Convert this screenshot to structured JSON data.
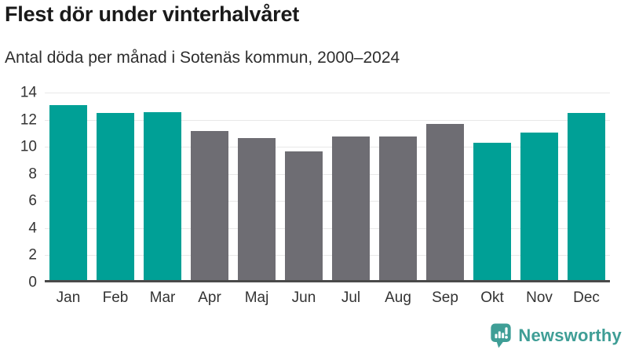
{
  "header": {
    "title": "Flest dör under vinterhalvåret",
    "subtitle": "Antal döda per månad i Sotenäs kommun, 2000–2024"
  },
  "chart_data": {
    "type": "bar",
    "title": "Flest dör under vinterhalvåret",
    "subtitle": "Antal döda per månad i Sotenäs kommun, 2000–2024",
    "categories": [
      "Jan",
      "Feb",
      "Mar",
      "Apr",
      "Maj",
      "Jun",
      "Jul",
      "Aug",
      "Sep",
      "Okt",
      "Nov",
      "Dec"
    ],
    "values": [
      12.9,
      12.3,
      12.4,
      11.0,
      10.5,
      9.5,
      10.6,
      10.6,
      11.5,
      10.1,
      10.9,
      12.3
    ],
    "highlighted": [
      true,
      true,
      true,
      false,
      false,
      false,
      false,
      false,
      false,
      true,
      true,
      true
    ],
    "xlabel": "",
    "ylabel": "",
    "ylim": [
      0,
      14
    ],
    "yticks": [
      0,
      2,
      4,
      6,
      8,
      10,
      12,
      14
    ],
    "grid": true,
    "legend": false,
    "colors": {
      "highlight_bar": "#00a096",
      "default_bar": "#6e6d73",
      "gridline": "#e8e8e8",
      "axis_line": "#4a4a4a",
      "tick_label": "#333333"
    }
  },
  "footer": {
    "brand": "Newsworthy",
    "brand_color": "#3f9e96",
    "logo_icon": "newsworthy-speech-bubble-chart-icon"
  }
}
